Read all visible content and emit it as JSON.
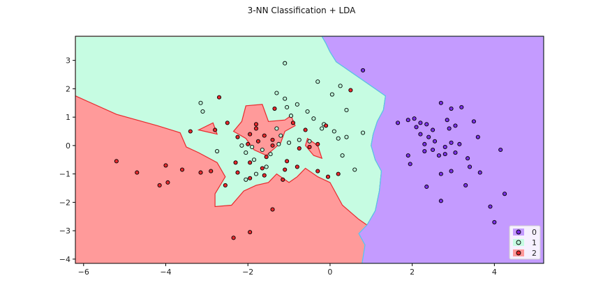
{
  "chart_data": {
    "type": "scatter",
    "title": "3-NN Classification + LDA",
    "xlabel": "",
    "ylabel": "",
    "xlim": [
      -6.2,
      5.2
    ],
    "ylim": [
      -4.15,
      3.85
    ],
    "xticks": [
      -6,
      -4,
      -2,
      0,
      2,
      4
    ],
    "yticks": [
      -4,
      -3,
      -2,
      -1,
      0,
      1,
      2,
      3
    ],
    "xtick_labels": [
      "−6",
      "−4",
      "−2",
      "0",
      "2",
      "4"
    ],
    "ytick_labels": [
      "−4",
      "−3",
      "−2",
      "−1",
      "0",
      "1",
      "2",
      "3"
    ],
    "grid": false,
    "legend": {
      "placement": "lower-right"
    },
    "colors": {
      "region_0": "#c49bff",
      "region_1": "#c6fce2",
      "region_2": "#ff9a9a",
      "point_0": "#7a2ee8",
      "point_1": "#b9f8d8",
      "point_2": "#e8282c",
      "boundary_0_1": "#4fc8f0",
      "boundary_1_2": "#e8282c",
      "boundary_0_2": "#f0a020"
    },
    "regions": {
      "class_0": [
        [
          0.0,
          3.85
        ],
        [
          5.2,
          3.85
        ],
        [
          5.2,
          -4.15
        ],
        [
          0.78,
          -4.15
        ],
        [
          0.85,
          -3.5
        ],
        [
          0.7,
          -3.1
        ],
        [
          0.9,
          -2.8
        ],
        [
          1.1,
          -2.3
        ],
        [
          1.2,
          -1.6
        ],
        [
          1.25,
          -0.9
        ],
        [
          1.1,
          -0.5
        ],
        [
          1.0,
          0.0
        ],
        [
          1.05,
          0.4
        ],
        [
          1.15,
          0.85
        ],
        [
          1.3,
          1.25
        ],
        [
          1.35,
          1.75
        ],
        [
          1.1,
          2.0
        ],
        [
          0.65,
          2.45
        ],
        [
          0.35,
          2.75
        ],
        [
          0.15,
          2.95
        ],
        [
          0.0,
          3.3
        ],
        [
          -0.1,
          3.6
        ],
        [
          -0.2,
          3.85
        ]
      ],
      "class_1": [
        [
          -6.2,
          3.85
        ],
        [
          -0.2,
          3.85
        ],
        [
          -0.1,
          3.6
        ],
        [
          0.0,
          3.3
        ],
        [
          0.15,
          2.95
        ],
        [
          0.35,
          2.75
        ],
        [
          0.65,
          2.45
        ],
        [
          1.1,
          2.0
        ],
        [
          1.35,
          1.75
        ],
        [
          1.3,
          1.25
        ],
        [
          1.15,
          0.85
        ],
        [
          1.05,
          0.4
        ],
        [
          1.0,
          0.0
        ],
        [
          1.1,
          -0.5
        ],
        [
          1.25,
          -0.9
        ],
        [
          1.2,
          -1.6
        ],
        [
          1.1,
          -2.3
        ],
        [
          0.9,
          -2.8
        ],
        [
          0.7,
          -2.6
        ],
        [
          0.3,
          -2.1
        ],
        [
          0.0,
          -1.3
        ],
        [
          -0.3,
          -1.1
        ],
        [
          -0.6,
          -0.8
        ],
        [
          -0.8,
          -1.1
        ],
        [
          -1.0,
          -1.3
        ],
        [
          -1.3,
          -1.0
        ],
        [
          -1.5,
          -1.3
        ],
        [
          -1.8,
          -1.4
        ],
        [
          -2.1,
          -1.6
        ],
        [
          -2.4,
          -2.1
        ],
        [
          -2.8,
          -2.15
        ],
        [
          -2.8,
          -1.7
        ],
        [
          -2.55,
          -1.1
        ],
        [
          -2.75,
          -0.6
        ],
        [
          -3.2,
          -0.25
        ],
        [
          -3.5,
          -0.05
        ],
        [
          -3.65,
          0.45
        ],
        [
          -4.2,
          0.7
        ],
        [
          -5.2,
          1.1
        ],
        [
          -6.2,
          1.75
        ]
      ],
      "class_2_islands": [
        [
          [
            -2.05,
            1.4
          ],
          [
            -1.65,
            1.45
          ],
          [
            -1.5,
            0.85
          ],
          [
            -1.1,
            0.9
          ],
          [
            -0.95,
            1.05
          ],
          [
            -0.85,
            0.7
          ],
          [
            -1.1,
            0.5
          ],
          [
            -1.2,
            0.1
          ],
          [
            -1.55,
            -0.35
          ],
          [
            -1.85,
            -0.15
          ],
          [
            -2.05,
            0.25
          ],
          [
            -2.35,
            0.5
          ],
          [
            -2.15,
            0.85
          ]
        ],
        [
          [
            -3.2,
            0.55
          ],
          [
            -2.85,
            0.8
          ],
          [
            -2.75,
            0.4
          ]
        ],
        [
          [
            -0.55,
            0.25
          ],
          [
            -0.3,
            0.0
          ],
          [
            -0.2,
            -0.45
          ],
          [
            -0.4,
            -0.35
          ],
          [
            -0.6,
            0.0
          ]
        ]
      ]
    },
    "series": [
      {
        "name": "0",
        "points": [
          [
            0.8,
            2.65
          ],
          [
            1.65,
            0.8
          ],
          [
            1.9,
            0.9
          ],
          [
            2.05,
            0.95
          ],
          [
            2.2,
            0.8
          ],
          [
            2.1,
            0.65
          ],
          [
            2.35,
            0.75
          ],
          [
            2.5,
            0.55
          ],
          [
            2.2,
            0.4
          ],
          [
            2.4,
            0.3
          ],
          [
            2.3,
            0.05
          ],
          [
            2.55,
            0.15
          ],
          [
            2.3,
            -0.2
          ],
          [
            2.5,
            -0.15
          ],
          [
            2.65,
            -0.35
          ],
          [
            2.8,
            -0.05
          ],
          [
            2.8,
            -0.3
          ],
          [
            2.95,
            0.1
          ],
          [
            3.05,
            -0.25
          ],
          [
            3.15,
            0.05
          ],
          [
            2.7,
            1.5
          ],
          [
            2.95,
            1.3
          ],
          [
            3.2,
            1.35
          ],
          [
            2.85,
            0.9
          ],
          [
            2.9,
            0.6
          ],
          [
            3.05,
            0.7
          ],
          [
            3.5,
            0.85
          ],
          [
            3.6,
            0.3
          ],
          [
            3.35,
            -0.45
          ],
          [
            3.4,
            -0.75
          ],
          [
            3.65,
            -0.95
          ],
          [
            2.7,
            -1.0
          ],
          [
            2.95,
            -0.9
          ],
          [
            3.3,
            -1.4
          ],
          [
            2.35,
            -1.45
          ],
          [
            1.9,
            -0.35
          ],
          [
            1.95,
            -0.65
          ],
          [
            2.7,
            -1.95
          ],
          [
            3.9,
            -2.15
          ],
          [
            4.0,
            -2.7
          ],
          [
            4.15,
            -0.15
          ],
          [
            4.25,
            -1.7
          ]
        ],
        "edge": "#000000"
      },
      {
        "name": "1",
        "points": [
          [
            -1.1,
            2.9
          ],
          [
            -0.3,
            2.25
          ],
          [
            0.25,
            2.1
          ],
          [
            0.05,
            1.8
          ],
          [
            -1.3,
            1.85
          ],
          [
            -1.1,
            1.65
          ],
          [
            -0.8,
            1.45
          ],
          [
            -1.05,
            1.35
          ],
          [
            -0.55,
            1.2
          ],
          [
            -0.95,
            1.05
          ],
          [
            -0.4,
            0.95
          ],
          [
            -0.15,
            0.75
          ],
          [
            -1.3,
            0.6
          ],
          [
            -1.2,
            0.35
          ],
          [
            -1.25,
            0.05
          ],
          [
            -1.0,
            0.1
          ],
          [
            -0.75,
            0.2
          ],
          [
            -0.5,
            0.15
          ],
          [
            -0.2,
            0.6
          ],
          [
            0.1,
            0.5
          ],
          [
            0.2,
            0.25
          ],
          [
            0.4,
            0.3
          ],
          [
            0.4,
            1.25
          ],
          [
            0.8,
            0.45
          ],
          [
            -3.15,
            1.5
          ],
          [
            -3.1,
            1.2
          ],
          [
            -2.75,
            -0.2
          ],
          [
            -2.15,
            0.0
          ],
          [
            -2.05,
            -0.25
          ],
          [
            -1.9,
            -0.05
          ],
          [
            -1.65,
            -0.15
          ],
          [
            -1.45,
            -0.3
          ],
          [
            -1.55,
            -0.75
          ],
          [
            -1.8,
            -1.0
          ],
          [
            -1.85,
            -0.5
          ],
          [
            -2.05,
            -1.2
          ],
          [
            0.3,
            -0.35
          ],
          [
            0.6,
            -0.85
          ]
        ],
        "edge": "#000000"
      },
      {
        "name": "2",
        "points": [
          [
            -2.7,
            1.7
          ],
          [
            -1.35,
            1.3
          ],
          [
            0.5,
            1.95
          ],
          [
            -2.5,
            0.8
          ],
          [
            -1.8,
            0.75
          ],
          [
            -1.8,
            0.6
          ],
          [
            -0.9,
            0.8
          ],
          [
            -0.6,
            0.55
          ],
          [
            -0.1,
            0.7
          ],
          [
            -3.4,
            0.5
          ],
          [
            -2.8,
            0.55
          ],
          [
            -2.25,
            0.3
          ],
          [
            -1.95,
            0.4
          ],
          [
            -1.6,
            0.35
          ],
          [
            -1.4,
            0.2
          ],
          [
            -1.75,
            0.15
          ],
          [
            -2.0,
            0.05
          ],
          [
            -1.4,
            0.0
          ],
          [
            -0.75,
            -0.1
          ],
          [
            -0.5,
            -0.05
          ],
          [
            -0.3,
            0.05
          ],
          [
            -1.55,
            -0.4
          ],
          [
            -1.05,
            -0.55
          ],
          [
            -0.8,
            -0.75
          ],
          [
            -2.3,
            -0.6
          ],
          [
            -1.95,
            -0.6
          ],
          [
            -1.65,
            -0.8
          ],
          [
            -1.1,
            -0.85
          ],
          [
            -0.3,
            -0.9
          ],
          [
            -0.05,
            -1.1
          ],
          [
            0.2,
            -1.0
          ],
          [
            -2.25,
            -0.95
          ],
          [
            -1.6,
            -1.05
          ],
          [
            -1.95,
            -1.15
          ],
          [
            -1.15,
            -1.2
          ],
          [
            -2.55,
            -1.4
          ],
          [
            -2.9,
            -0.9
          ],
          [
            -3.15,
            -0.95
          ],
          [
            -3.6,
            -0.85
          ],
          [
            -4.0,
            -0.7
          ],
          [
            -3.95,
            -1.3
          ],
          [
            -4.15,
            -1.4
          ],
          [
            -4.7,
            -0.95
          ],
          [
            -5.2,
            -0.55
          ],
          [
            -1.4,
            -2.25
          ],
          [
            -1.95,
            -3.05
          ],
          [
            -2.35,
            -3.25
          ]
        ],
        "edge": "#000000"
      }
    ]
  }
}
